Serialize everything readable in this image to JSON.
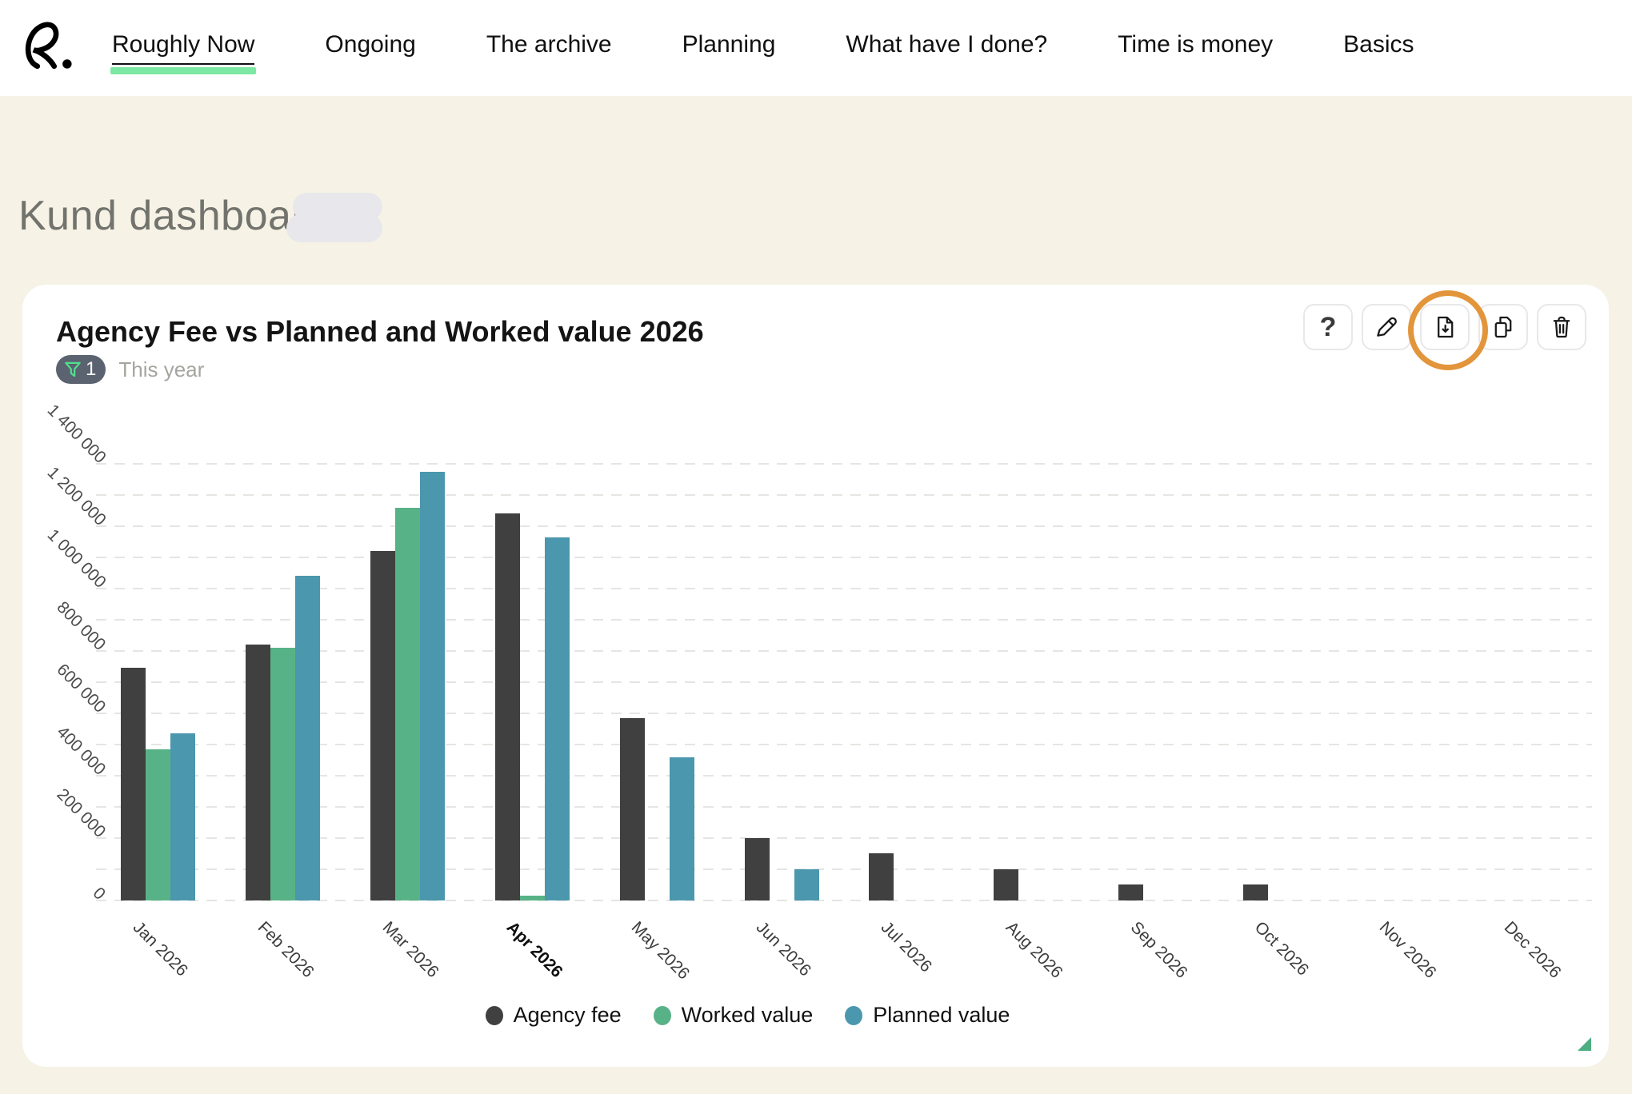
{
  "nav": {
    "logo_text": "R.",
    "items": [
      {
        "label": "Roughly Now",
        "active": true
      },
      {
        "label": "Ongoing",
        "active": false
      },
      {
        "label": "The archive",
        "active": false
      },
      {
        "label": "Planning",
        "active": false
      },
      {
        "label": "What have I done?",
        "active": false
      },
      {
        "label": "Time is money",
        "active": false
      },
      {
        "label": "Basics",
        "active": false
      }
    ],
    "active_underline_color": "#7de8a3"
  },
  "page": {
    "title": "Kund dashboard"
  },
  "card": {
    "title": "Agency Fee vs Planned and Worked value 2026",
    "filter_badge": {
      "count": "1",
      "label": "This year",
      "funnel_color": "#50e08c",
      "pill_color": "#5b6270"
    },
    "toolbar": {
      "help_glyph": "?",
      "buttons": [
        {
          "name": "help",
          "icon": "question-mark-icon"
        },
        {
          "name": "edit",
          "icon": "pencil-icon"
        },
        {
          "name": "download",
          "icon": "file-download-icon",
          "highlighted": true
        },
        {
          "name": "duplicate",
          "icon": "copy-icon"
        },
        {
          "name": "delete",
          "icon": "trash-icon"
        }
      ],
      "highlight_ring_color": "#e2953b"
    },
    "resize_handle_color": "#4cae81"
  },
  "chart_data": {
    "type": "bar",
    "title": "Agency Fee vs Planned and Worked value 2026",
    "categories": [
      "Jan 2026",
      "Feb 2026",
      "Mar 2026",
      "Apr 2026",
      "May 2026",
      "Jun 2026",
      "Jul 2026",
      "Aug 2026",
      "Sep 2026",
      "Oct 2026",
      "Nov 2026",
      "Dec 2026"
    ],
    "highlighted_category": "Apr 2026",
    "series": [
      {
        "name": "Agency fee",
        "color": "#404040",
        "values": [
          745000,
          820000,
          1120000,
          1240000,
          585000,
          200000,
          150000,
          100000,
          50000,
          50000,
          0,
          0
        ]
      },
      {
        "name": "Worked value",
        "color": "#58b287",
        "values": [
          485000,
          810000,
          1260000,
          15000,
          0,
          0,
          0,
          0,
          0,
          0,
          0,
          0
        ]
      },
      {
        "name": "Planned value",
        "color": "#4a97ae",
        "values": [
          535000,
          1040000,
          1375000,
          1165000,
          460000,
          100000,
          0,
          0,
          0,
          0,
          0,
          0
        ]
      }
    ],
    "ylim": [
      0,
      1400000
    ],
    "grid_step": 100000,
    "y_tick_step": 200000,
    "y_tick_labels": [
      "0",
      "200 000",
      "400 000",
      "600 000",
      "800 000",
      "1 000 000",
      "1 200 000",
      "1 400 000"
    ],
    "grid": "horizontal-dashed",
    "legend_position": "bottom"
  }
}
